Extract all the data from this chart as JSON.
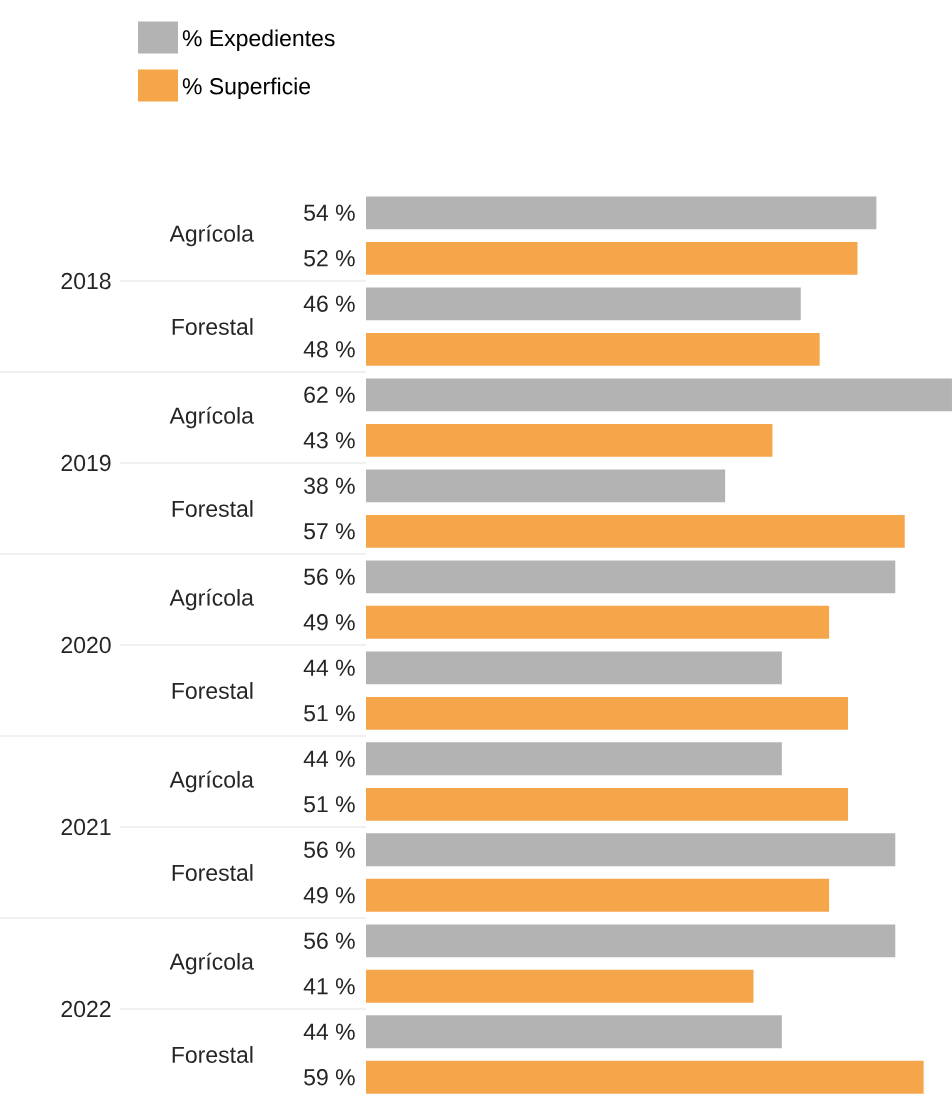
{
  "chart_data": {
    "type": "bar",
    "orientation": "horizontal",
    "legend": "top left",
    "categories": [
      "Agrícola",
      "Forestal",
      "Agrícola",
      "Forestal",
      "Agrícola",
      "Forestal",
      "Agrícola",
      "Forestal",
      "Agrícola",
      "Forestal"
    ],
    "annotations": [
      "2018",
      "2019",
      "2020",
      "2021",
      "2022"
    ],
    "series": [
      {
        "name": "% Expedientes",
        "color": "#b3b3b3",
        "values": [
          54,
          46,
          62,
          38,
          56,
          44,
          44,
          56,
          56,
          44
        ],
        "value_labels": [
          "54 %",
          "46 %",
          "62 %",
          "38 %",
          "56 %",
          "44 %",
          "44 %",
          "56 %",
          "56 %",
          "44 %"
        ]
      },
      {
        "name": "% Superficie",
        "color": "#f5a54a",
        "values": [
          52,
          48,
          43,
          57,
          49,
          51,
          51,
          49,
          41,
          59
        ],
        "value_labels": [
          "52 %",
          "48 %",
          "43 %",
          "57 %",
          "49 %",
          "51 %",
          "51 %",
          "49 %",
          "41 %",
          "59 %"
        ]
      }
    ]
  }
}
